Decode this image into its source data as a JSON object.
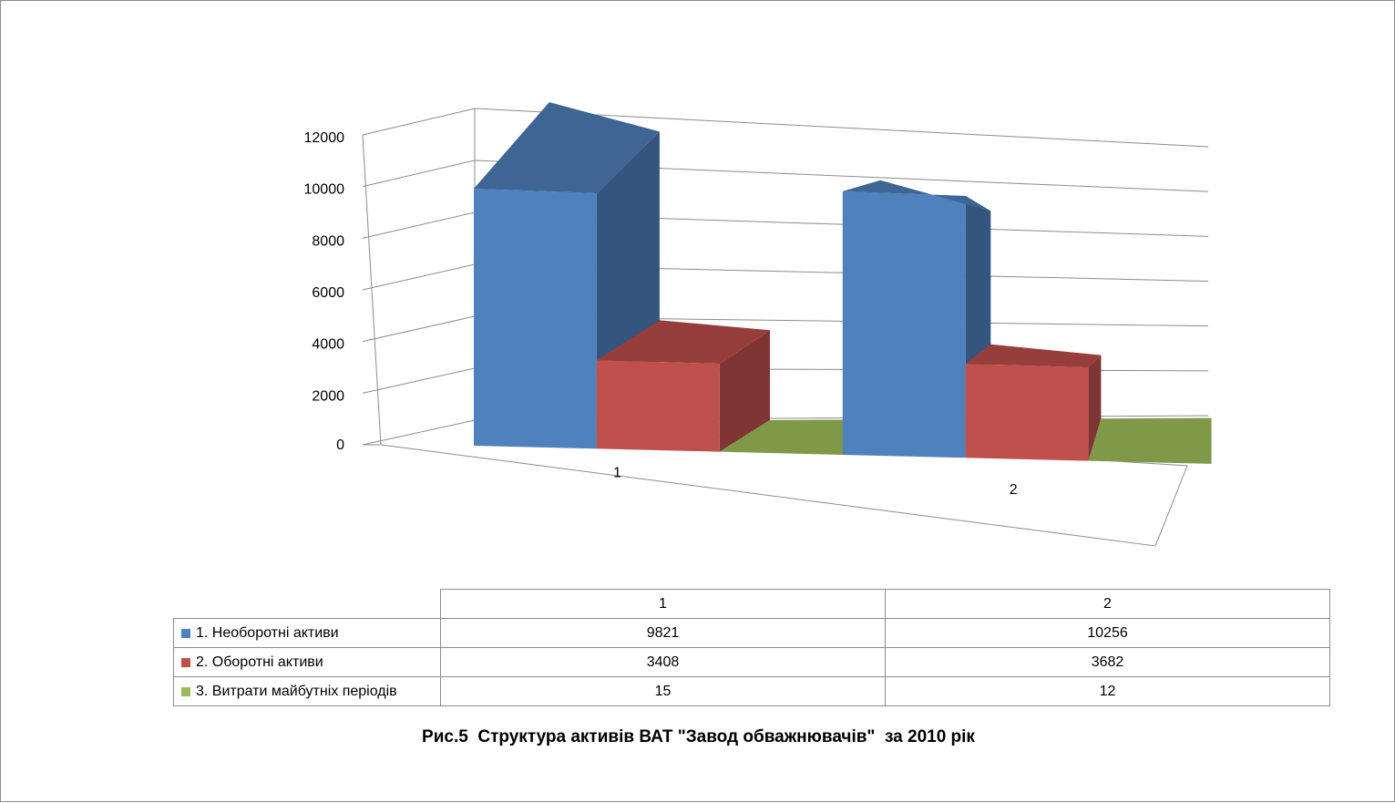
{
  "chart_data": {
    "type": "bar",
    "subtype": "3d-clustered-column",
    "title": "Рис.5  Структура активів ВАТ \"Завод обважнювачів\"  за 2010 рік",
    "categories": [
      "1",
      "2"
    ],
    "series": [
      {
        "name": "1. Необоротні активи",
        "values": [
          9821,
          10256
        ],
        "color": "#4F81BD"
      },
      {
        "name": "2. Оборотні активи",
        "values": [
          3408,
          3682
        ],
        "color": "#C0504D"
      },
      {
        "name": "3. Витрати майбутніх періодів",
        "values": [
          15,
          12
        ],
        "color": "#9BBB59"
      }
    ],
    "ylim": [
      0,
      12000
    ],
    "yticks": [
      "0",
      "2000",
      "4000",
      "6000",
      "8000",
      "10000",
      "12000"
    ],
    "grid": true,
    "legend": "data-table-below"
  }
}
